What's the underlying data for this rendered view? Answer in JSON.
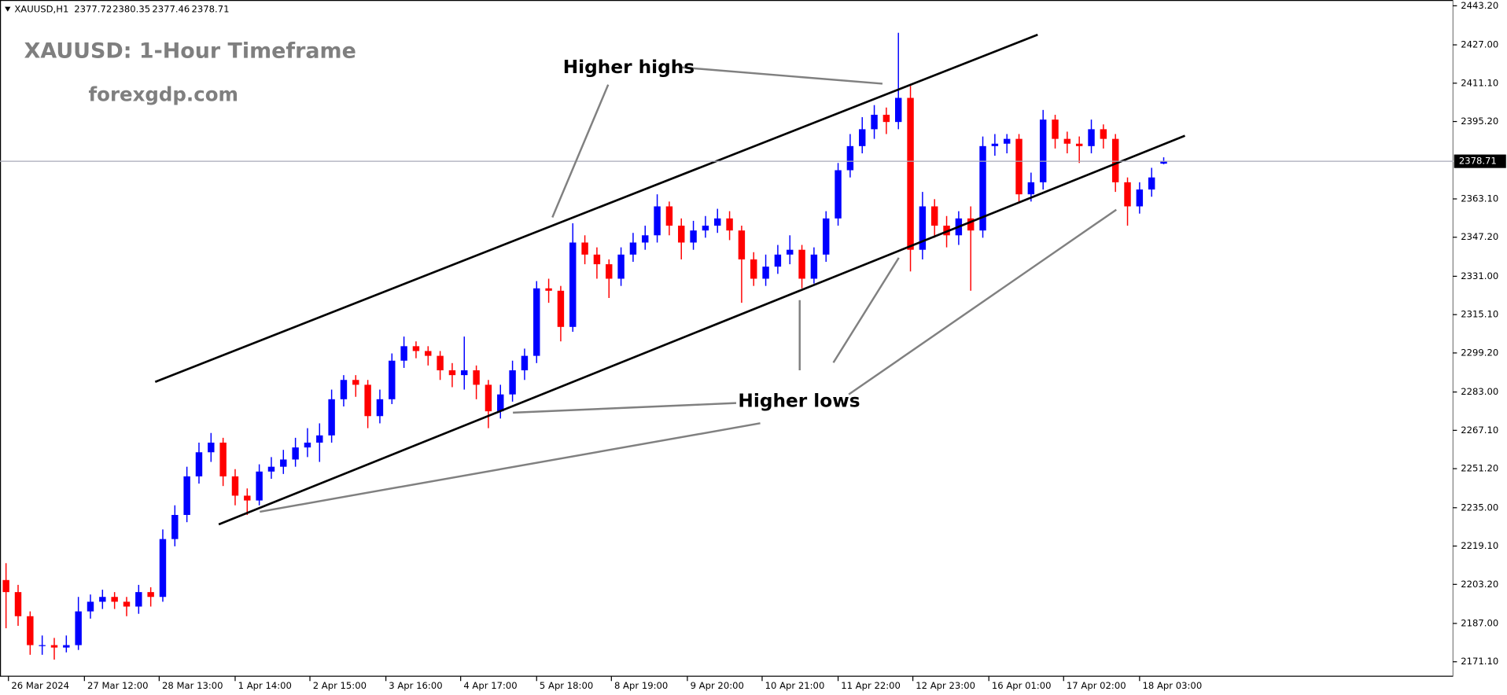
{
  "chart_data": {
    "type": "candlestick",
    "title": "XAUUSD: 1-Hour Timeframe",
    "subtitle": "forexgdp.com",
    "symbol": "XAUUSD,H1",
    "annotations": {
      "higher_highs": "Higher highs",
      "higher_lows": "Higher lows"
    },
    "up_color": "#0000ff",
    "down_color": "#ff0000",
    "price_line_color": "#a8aab8",
    "trendline_color": "#000000",
    "xlim": [
      -0.5,
      120
    ],
    "ylim": [
      2165.1,
      2445.6
    ],
    "xticks": [
      {
        "value": 0.2,
        "label": "26 Mar 2024"
      },
      {
        "value": 6.5,
        "label": "27 Mar 12:00"
      },
      {
        "value": 12.7,
        "label": "28 Mar 13:00"
      },
      {
        "value": 19,
        "label": "1 Apr 14:00"
      },
      {
        "value": 25.2,
        "label": "2 Apr 15:00"
      },
      {
        "value": 31.5,
        "label": "3 Apr 16:00"
      },
      {
        "value": 37.7,
        "label": "4 Apr 17:00"
      },
      {
        "value": 44,
        "label": "5 Apr 18:00"
      },
      {
        "value": 50.2,
        "label": "8 Apr 19:00"
      },
      {
        "value": 56.5,
        "label": "9 Apr 20:00"
      },
      {
        "value": 62.7,
        "label": "10 Apr 21:00"
      },
      {
        "value": 69,
        "label": "11 Apr 22:00"
      },
      {
        "value": 75.2,
        "label": "12 Apr 23:00"
      },
      {
        "value": 81.5,
        "label": "16 Apr 01:00"
      },
      {
        "value": 87.7,
        "label": "17 Apr 02:00"
      },
      {
        "value": 94,
        "label": "18 Apr 03:00"
      }
    ],
    "yticks": [
      {
        "value": 2443.2,
        "label": "2443.20"
      },
      {
        "value": 2427,
        "label": "2427.00"
      },
      {
        "value": 2411.1,
        "label": "2411.10"
      },
      {
        "value": 2395.2,
        "label": "2395.20"
      },
      {
        "value": 2363.1,
        "label": "2363.10"
      },
      {
        "value": 2347.2,
        "label": "2347.20"
      },
      {
        "value": 2331,
        "label": "2331.00"
      },
      {
        "value": 2315.1,
        "label": "2315.10"
      },
      {
        "value": 2299.2,
        "label": "2299.20"
      },
      {
        "value": 2283,
        "label": "2283.00"
      },
      {
        "value": 2267.1,
        "label": "2267.10"
      },
      {
        "value": 2251.2,
        "label": "2251.20"
      },
      {
        "value": 2235,
        "label": "2235.00"
      },
      {
        "value": 2219.1,
        "label": "2219.10"
      },
      {
        "value": 2203.2,
        "label": "2203.20"
      },
      {
        "value": 2187,
        "label": "2187.00"
      },
      {
        "value": 2171.1,
        "label": "2171.10"
      }
    ],
    "open": [
      2205,
      2200,
      2190,
      2178,
      2178,
      2177,
      2178,
      2192,
      2196,
      2198,
      2196,
      2194,
      2200,
      2198,
      2222,
      2232,
      2248,
      2258,
      2262,
      2248,
      2240,
      2238,
      2250,
      2252,
      2255,
      2260,
      2262,
      2265,
      2280,
      2288,
      2286,
      2273,
      2280,
      2296,
      2302,
      2300,
      2298,
      2292,
      2290,
      2292,
      2286,
      2275,
      2282,
      2292,
      2298,
      2326,
      2325,
      2310,
      2345,
      2340,
      2336,
      2330,
      2340,
      2345,
      2348,
      2360,
      2352,
      2345,
      2350,
      2352,
      2355,
      2350,
      2338,
      2330,
      2335,
      2340,
      2342,
      2330,
      2340,
      2355,
      2375,
      2385,
      2392,
      2398,
      2395,
      2405,
      2342,
      2360,
      2352,
      2348,
      2355,
      2350,
      2385,
      2386,
      2388,
      2365,
      2370,
      2396,
      2388,
      2386,
      2385,
      2392,
      2388,
      2370,
      2360,
      2367,
      2377.72
    ],
    "high": [
      2212,
      2203,
      2192,
      2182,
      2181,
      2182,
      2198,
      2199,
      2201,
      2200,
      2198,
      2203,
      2202,
      2226,
      2236,
      2252,
      2262,
      2266,
      2264,
      2251,
      2243,
      2253,
      2256,
      2259,
      2264,
      2268,
      2270,
      2284,
      2290,
      2290,
      2288,
      2284,
      2299,
      2306,
      2304,
      2302,
      2300,
      2295,
      2306,
      2294,
      2288,
      2286,
      2296,
      2301,
      2329,
      2330,
      2327,
      2353,
      2348,
      2343,
      2338,
      2343,
      2349,
      2352,
      2365,
      2362,
      2355,
      2354,
      2356,
      2359,
      2358,
      2352,
      2341,
      2340,
      2344,
      2348,
      2344,
      2343,
      2358,
      2378,
      2390,
      2397,
      2402,
      2401,
      2432,
      2410,
      2366,
      2363,
      2356,
      2358,
      2360,
      2389,
      2390,
      2390,
      2390,
      2374,
      2400,
      2398,
      2391,
      2389,
      2396,
      2394,
      2390,
      2372,
      2370,
      2376,
      2380.35
    ],
    "low": [
      2185,
      2186,
      2174,
      2174,
      2172,
      2175,
      2176,
      2189,
      2193,
      2193,
      2190,
      2191,
      2194,
      2196,
      2219,
      2229,
      2245,
      2254,
      2244,
      2236,
      2232,
      2236,
      2247,
      2249,
      2252,
      2256,
      2254,
      2262,
      2277,
      2281,
      2268,
      2270,
      2278,
      2293,
      2297,
      2294,
      2288,
      2285,
      2284,
      2280,
      2268,
      2272,
      2279,
      2288,
      2295,
      2320,
      2304,
      2308,
      2336,
      2330,
      2322,
      2327,
      2337,
      2342,
      2345,
      2348,
      2338,
      2342,
      2347,
      2349,
      2346,
      2320,
      2327,
      2327,
      2332,
      2336,
      2326,
      2328,
      2337,
      2352,
      2372,
      2382,
      2388,
      2390,
      2392,
      2333,
      2338,
      2347,
      2343,
      2344,
      2325,
      2347,
      2381,
      2382,
      2362,
      2362,
      2367,
      2384,
      2382,
      2378,
      2382,
      2384,
      2366,
      2352,
      2357,
      2364,
      2377.46
    ],
    "close": [
      2200,
      2190,
      2178,
      2178,
      2177,
      2178,
      2192,
      2196,
      2198,
      2196,
      2194,
      2200,
      2198,
      2222,
      2232,
      2248,
      2258,
      2262,
      2248,
      2240,
      2238,
      2250,
      2252,
      2255,
      2260,
      2262,
      2265,
      2280,
      2288,
      2286,
      2273,
      2280,
      2296,
      2302,
      2300,
      2298,
      2292,
      2290,
      2292,
      2286,
      2275,
      2282,
      2292,
      2298,
      2326,
      2325,
      2310,
      2345,
      2340,
      2336,
      2330,
      2340,
      2345,
      2348,
      2360,
      2352,
      2345,
      2350,
      2352,
      2355,
      2350,
      2338,
      2330,
      2335,
      2340,
      2342,
      2330,
      2340,
      2355,
      2375,
      2385,
      2392,
      2398,
      2395,
      2405,
      2342,
      2360,
      2352,
      2348,
      2355,
      2350,
      2385,
      2386,
      2388,
      2365,
      2370,
      2396,
      2388,
      2386,
      2385,
      2392,
      2388,
      2370,
      2360,
      2367,
      2372,
      2378.71
    ],
    "trendlines": [
      {
        "x": [
          12.37,
          85.55
        ],
        "y": [
          2287.2,
          2431.2
        ]
      },
      {
        "x": [
          17.64,
          97.76
        ],
        "y": [
          2228.1,
          2389.3
        ]
      }
    ]
  }
}
